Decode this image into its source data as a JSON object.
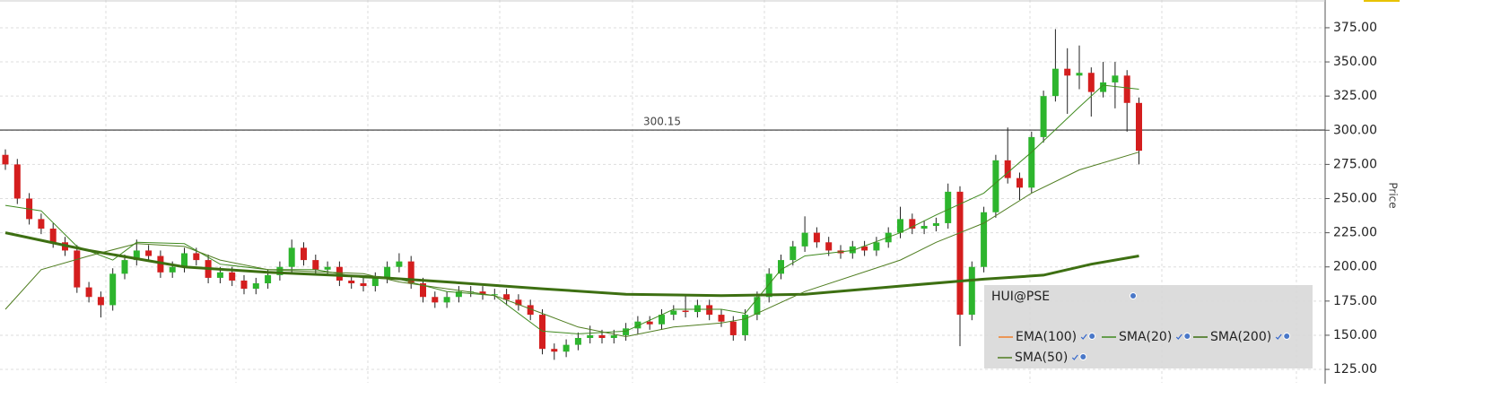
{
  "chart_data": {
    "type": "candlestick",
    "up_color": "#2db52d",
    "down_color": "#d41e1e",
    "ylim": [
      115.2,
      395.3
    ],
    "yticks": [
      {
        "value": 125,
        "label": "125.00"
      },
      {
        "value": 150,
        "label": "150.00"
      },
      {
        "value": 175,
        "label": "175.00"
      },
      {
        "value": 200,
        "label": "200.00"
      },
      {
        "value": 225,
        "label": "225.00"
      },
      {
        "value": 250,
        "label": "250.00"
      },
      {
        "value": 275,
        "label": "275.00"
      },
      {
        "value": 300,
        "label": "300.00"
      },
      {
        "value": 325,
        "label": "325.00"
      },
      {
        "value": 350,
        "label": "350.00"
      },
      {
        "value": 375,
        "label": "375.00"
      }
    ],
    "ylabel": "Price",
    "grid": true,
    "reference_line": {
      "value": 300.15,
      "label": "300.15"
    },
    "open": [
      282,
      275,
      250,
      235,
      228,
      218,
      212,
      185,
      178,
      172,
      195,
      205,
      212,
      208,
      196,
      200,
      210,
      205,
      192,
      196,
      190,
      184,
      188,
      194,
      200,
      214,
      205,
      198,
      200,
      190,
      188,
      186,
      192,
      200,
      204,
      188,
      178,
      174,
      178,
      182,
      182,
      180,
      180,
      176,
      172,
      165,
      140,
      138,
      143,
      148,
      150,
      148,
      150,
      155,
      160,
      158,
      165,
      168,
      167,
      172,
      165,
      160,
      150,
      165,
      178,
      195,
      205,
      215,
      225,
      218,
      212,
      210,
      215,
      212,
      218,
      225,
      235,
      228,
      230,
      232,
      255,
      165,
      200,
      240,
      278,
      265,
      258,
      295,
      325,
      345,
      340,
      342,
      328,
      335,
      340,
      320
    ],
    "high": [
      286,
      279,
      254,
      239,
      232,
      222,
      216,
      189,
      182,
      199,
      209,
      220,
      216,
      212,
      204,
      214,
      214,
      209,
      200,
      200,
      194,
      192,
      198,
      204,
      220,
      218,
      209,
      204,
      204,
      194,
      192,
      196,
      204,
      210,
      208,
      192,
      182,
      182,
      186,
      186,
      186,
      184,
      184,
      180,
      176,
      169,
      144,
      147,
      152,
      157,
      154,
      154,
      159,
      164,
      164,
      169,
      172,
      180,
      176,
      176,
      169,
      164,
      169,
      182,
      199,
      209,
      219,
      237,
      229,
      222,
      216,
      219,
      219,
      222,
      229,
      244,
      239,
      234,
      236,
      261,
      259,
      204,
      244,
      282,
      302,
      269,
      299,
      329,
      374,
      360,
      362,
      346,
      350,
      350,
      344,
      324
    ],
    "low": [
      271,
      246,
      231,
      224,
      214,
      208,
      181,
      174,
      163,
      168,
      191,
      201,
      204,
      192,
      192,
      196,
      201,
      188,
      188,
      186,
      180,
      180,
      184,
      190,
      196,
      201,
      194,
      194,
      186,
      184,
      182,
      182,
      188,
      196,
      184,
      174,
      170,
      170,
      174,
      178,
      176,
      176,
      172,
      168,
      161,
      136,
      132,
      134,
      139,
      144,
      144,
      144,
      146,
      151,
      154,
      154,
      161,
      163,
      163,
      161,
      156,
      146,
      146,
      161,
      174,
      191,
      201,
      211,
      214,
      208,
      206,
      206,
      208,
      208,
      214,
      221,
      224,
      224,
      226,
      228,
      142,
      161,
      196,
      236,
      261,
      249,
      254,
      291,
      321,
      312,
      330,
      310,
      324,
      316,
      299,
      275
    ],
    "close": [
      275,
      250,
      235,
      228,
      218,
      212,
      185,
      178,
      172,
      195,
      205,
      212,
      208,
      196,
      200,
      210,
      205,
      192,
      196,
      190,
      184,
      188,
      194,
      200,
      214,
      205,
      198,
      200,
      190,
      188,
      186,
      192,
      200,
      204,
      188,
      178,
      174,
      178,
      182,
      182,
      180,
      180,
      176,
      172,
      165,
      140,
      138,
      143,
      148,
      150,
      148,
      150,
      155,
      160,
      158,
      165,
      168,
      167,
      172,
      165,
      160,
      150,
      165,
      178,
      195,
      205,
      215,
      225,
      218,
      212,
      210,
      215,
      212,
      218,
      225,
      235,
      228,
      230,
      232,
      255,
      165,
      200,
      240,
      278,
      265,
      258,
      295,
      325,
      345,
      340,
      342,
      328,
      335,
      340,
      320,
      285
    ],
    "legend_title": "HUI@PSE",
    "overlays": [
      {
        "name": "EMA(100)",
        "color": "#f07f2a",
        "width": 1.5
      },
      {
        "name": "SMA(20)",
        "color": "#3f8a1f",
        "width": 1,
        "x": [
          0,
          3,
          6,
          9,
          11,
          15,
          18,
          22,
          26,
          30,
          33,
          37,
          41,
          45,
          48,
          52,
          56,
          60,
          62,
          65,
          67,
          71,
          75,
          78,
          82,
          86,
          90,
          92,
          95
        ],
        "values": [
          245,
          241,
          215,
          205,
          218,
          217,
          202,
          198,
          198,
          192,
          191,
          182,
          179,
          153,
          151,
          153,
          169,
          169,
          166,
          198,
          208,
          212,
          225,
          238,
          254,
          284,
          317,
          333,
          330
        ]
      },
      {
        "name": "SMA(200)",
        "color": "#3d6f12",
        "width": 3,
        "x": [
          0,
          7,
          15,
          22,
          30,
          37,
          45,
          52,
          60,
          67,
          75,
          82,
          87,
          91,
          95
        ],
        "values": [
          225,
          212,
          200,
          196,
          193,
          189,
          184,
          180,
          179,
          180,
          186,
          191,
          194,
          202,
          208
        ]
      },
      {
        "name": "SMA(50)",
        "color": "#4f7d20",
        "width": 1,
        "x": [
          0,
          3,
          7,
          11,
          15,
          18,
          22,
          30,
          33,
          37,
          41,
          45,
          48,
          52,
          56,
          60,
          62,
          67,
          75,
          78,
          82,
          86,
          90,
          95
        ],
        "values": [
          169,
          198,
          208,
          217,
          215,
          205,
          198,
          195,
          189,
          184,
          179,
          166,
          156,
          149,
          156,
          159,
          162,
          182,
          205,
          218,
          232,
          254,
          271,
          284
        ]
      }
    ]
  }
}
